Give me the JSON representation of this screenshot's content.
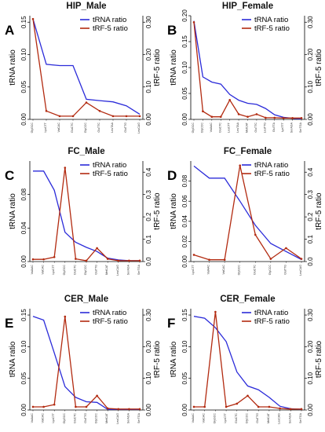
{
  "figure": {
    "colors": {
      "trna": "#2b2bd9",
      "trf": "#b22a10",
      "axis": "#000000"
    }
  },
  "chart_data": [
    {
      "type": "line",
      "letter": "A",
      "title": "HIP_Male",
      "ylabel_left": "tRNA ratio",
      "ylabel_right": "tRF-5 ratio",
      "ylim_left": [
        0,
        0.16
      ],
      "yticks_left": [
        "0.00",
        "0.05",
        "0.10",
        "0.15"
      ],
      "yticks_left_values": [
        0,
        0.05,
        0.1,
        0.15
      ],
      "ylim_right": [
        0,
        0.32
      ],
      "yticks_right": [
        "0.00",
        "0.10",
        "0.20",
        "0.30"
      ],
      "yticks_right_values": [
        0,
        0.1,
        0.2,
        0.3
      ],
      "categories": [
        "GlyGCC",
        "LysCTT",
        "ValCAC",
        "GluCTC",
        "GlyCCC",
        "GluTTC",
        "LeuTAA",
        "GluTTG",
        "LeuCAG"
      ],
      "series": [
        {
          "name": "tRNA ratio",
          "axis": "left",
          "values": [
            0.155,
            0.085,
            0.083,
            0.083,
            0.031,
            0.029,
            0.027,
            0.021,
            0.008
          ]
        },
        {
          "name": "tRF-5 ratio",
          "axis": "right",
          "values": [
            0.31,
            0.026,
            0.01,
            0.01,
            0.052,
            0.026,
            0.01,
            0.01,
            0.01
          ]
        }
      ],
      "legend": [
        "tRNA ratio",
        "tRF-5 ratio"
      ],
      "legend_position": "top-right"
    },
    {
      "type": "line",
      "letter": "B",
      "title": "HIP_Female",
      "ylabel_left": "tRNA ratio",
      "ylabel_right": "tRF-5 ratio",
      "ylim_left": [
        0,
        0.2
      ],
      "yticks_left": [
        "0.00",
        "0.05",
        "0.10",
        "0.15",
        "0.20"
      ],
      "yticks_left_values": [
        0,
        0.05,
        0.1,
        0.15,
        0.2
      ],
      "ylim_right": [
        0,
        0.32
      ],
      "yticks_right": [
        "0.00",
        "0.10",
        "0.20",
        "0.30"
      ],
      "yticks_right_values": [
        0,
        0.1,
        0.2,
        0.3
      ],
      "categories": [
        "GlyGCC",
        "GlyCCC",
        "ValAAC",
        "GluCTC",
        "LeuCTT",
        "LeuTAA",
        "MetCAT",
        "GluTTC",
        "LeuTTG",
        "GluTTA",
        "LysTTT",
        "SerAGA",
        "SerTGA"
      ],
      "series": [
        {
          "name": "tRNA ratio",
          "axis": "left",
          "values": [
            0.19,
            0.082,
            0.072,
            0.068,
            0.048,
            0.037,
            0.031,
            0.029,
            0.021,
            0.009,
            0.004,
            0.002,
            0.001
          ]
        },
        {
          "name": "tRF-5 ratio",
          "axis": "right",
          "values": [
            0.3,
            0.025,
            0.008,
            0.008,
            0.06,
            0.016,
            0.008,
            0.016,
            0.005,
            0.005,
            0.004,
            0.004,
            0.004
          ]
        }
      ],
      "legend": [
        "tRNA ratio",
        "tRF-5 ratio"
      ],
      "legend_position": "top-right"
    },
    {
      "type": "line",
      "letter": "C",
      "title": "FC_Male",
      "ylabel_left": "tRNA ratio",
      "ylabel_right": "tRF-5 ratio",
      "ylim_left": [
        0,
        0.12
      ],
      "yticks_left": [
        "0.00",
        "0.04",
        "0.08"
      ],
      "yticks_left_values": [
        0,
        0.04,
        0.08
      ],
      "ylim_right": [
        0,
        0.45
      ],
      "yticks_right": [
        "0.0",
        "0.1",
        "0.2",
        "0.3",
        "0.4"
      ],
      "yticks_right_values": [
        0,
        0.1,
        0.2,
        0.3,
        0.4
      ],
      "categories": [
        "ValAAC",
        "ValCAC",
        "LysCTT",
        "GlyGCC",
        "GluCTC",
        "GlyCCC",
        "GluTTG",
        "MetCAT",
        "LeuCAG",
        "SerAGA",
        "SerTGA"
      ],
      "series": [
        {
          "name": "tRNA ratio",
          "axis": "left",
          "values": [
            0.108,
            0.108,
            0.085,
            0.035,
            0.023,
            0.017,
            0.012,
            0.004,
            0.002,
            0.001,
            0.001
          ]
        },
        {
          "name": "tRF-5 ratio",
          "axis": "right",
          "values": [
            0.01,
            0.01,
            0.02,
            0.42,
            0.012,
            0.004,
            0.06,
            0.012,
            0.004,
            0.004,
            0.004
          ]
        }
      ],
      "legend": [
        "tRNA ratio",
        "tRF-5 ratio"
      ],
      "legend_position": "top-right"
    },
    {
      "type": "line",
      "letter": "D",
      "title": "FC_Female",
      "ylabel_left": "tRNA ratio",
      "ylabel_right": "tRF-5 ratio",
      "ylim_left": [
        0,
        0.1
      ],
      "yticks_left": [
        "0.00",
        "0.02",
        "0.04",
        "0.06",
        "0.08"
      ],
      "yticks_left_values": [
        0,
        0.02,
        0.04,
        0.06,
        0.08
      ],
      "ylim_right": [
        0,
        0.45
      ],
      "yticks_right": [
        "0.0",
        "0.1",
        "0.2",
        "0.3",
        "0.4"
      ],
      "yticks_right_values": [
        0,
        0.1,
        0.2,
        0.3,
        0.4
      ],
      "categories": [
        "LysCTT",
        "ValAAC",
        "ValCAC",
        "GlyGCC",
        "GluCTC",
        "GlyCCC",
        "GluTTG",
        "LeuCAG"
      ],
      "series": [
        {
          "name": "tRNA ratio",
          "axis": "left",
          "values": [
            0.095,
            0.083,
            0.083,
            0.06,
            0.036,
            0.018,
            0.01,
            0.002
          ]
        },
        {
          "name": "tRF-5 ratio",
          "axis": "right",
          "values": [
            0.03,
            0.008,
            0.008,
            0.43,
            0.12,
            0.012,
            0.06,
            0.012
          ]
        }
      ],
      "legend": [
        "tRNA ratio",
        "tRF-5 ratio"
      ],
      "legend_position": "top-right"
    },
    {
      "type": "line",
      "letter": "E",
      "title": "CER_Male",
      "ylabel_left": "tRNA ratio",
      "ylabel_right": "tRF-5 ratio",
      "ylim_left": [
        0,
        0.16
      ],
      "yticks_left": [
        "0.00",
        "0.05",
        "0.10",
        "0.15"
      ],
      "yticks_left_values": [
        0,
        0.05,
        0.1,
        0.15
      ],
      "ylim_right": [
        0,
        0.32
      ],
      "yticks_right": [
        "0.00",
        "0.10",
        "0.20",
        "0.30"
      ],
      "yticks_right_values": [
        0,
        0.1,
        0.2,
        0.3
      ],
      "categories": [
        "ValAAC",
        "ValCAC",
        "LysCTT",
        "GlyGCC",
        "GluCTC",
        "GluTTG",
        "GlyCCC",
        "MetCAT",
        "LeuCAG",
        "SerAGA",
        "SerTGA"
      ],
      "series": [
        {
          "name": "tRNA ratio",
          "axis": "left",
          "values": [
            0.148,
            0.142,
            0.09,
            0.037,
            0.02,
            0.013,
            0.012,
            0.001,
            0.001,
            0.001,
            0.001
          ]
        },
        {
          "name": "tRF-5 ratio",
          "axis": "right",
          "values": [
            0.01,
            0.01,
            0.017,
            0.295,
            0.01,
            0.01,
            0.045,
            0.005,
            0.003,
            0.003,
            0.003
          ]
        }
      ],
      "legend": [
        "tRNA ratio",
        "tRF-5 ratio"
      ],
      "legend_position": "top-right"
    },
    {
      "type": "line",
      "letter": "F",
      "title": "CER_Female",
      "ylabel_left": "tRNA ratio",
      "ylabel_right": "tRF-5 ratio",
      "ylim_left": [
        0,
        0.16
      ],
      "yticks_left": [
        "0.00",
        "0.05",
        "0.10",
        "0.15"
      ],
      "yticks_left_values": [
        0,
        0.05,
        0.1,
        0.15
      ],
      "ylim_right": [
        0,
        0.32
      ],
      "yticks_right": [
        "0.00",
        "0.10",
        "0.20",
        "0.30"
      ],
      "yticks_right_values": [
        0,
        0.1,
        0.2,
        0.3
      ],
      "categories": [
        "ValAAC",
        "ValCAC",
        "GlyGCC",
        "LysCTT",
        "GluCTC",
        "GlyCCC",
        "GluTTG",
        "MetCAT",
        "LeuCAG",
        "SerAGA",
        "SerTGA"
      ],
      "series": [
        {
          "name": "tRNA ratio",
          "axis": "left",
          "values": [
            0.148,
            0.145,
            0.13,
            0.108,
            0.06,
            0.038,
            0.032,
            0.02,
            0.006,
            0.002,
            0.001
          ]
        },
        {
          "name": "tRF-5 ratio",
          "axis": "right",
          "values": [
            0.01,
            0.01,
            0.31,
            0.01,
            0.02,
            0.045,
            0.01,
            0.01,
            0.005,
            0.003,
            0.003
          ]
        }
      ],
      "legend": [
        "tRNA ratio",
        "tRF-5 ratio"
      ],
      "legend_position": "top-right"
    }
  ]
}
